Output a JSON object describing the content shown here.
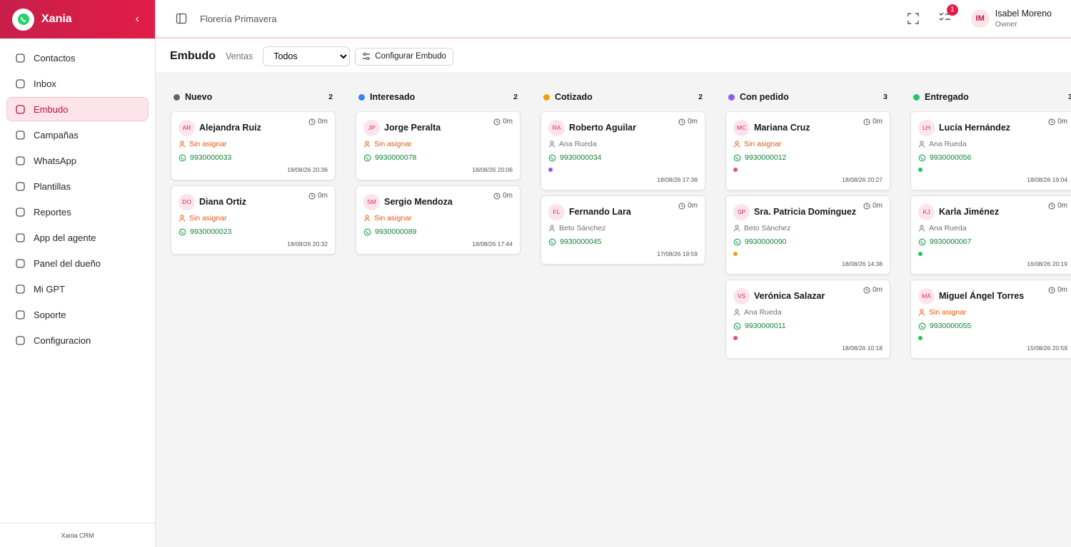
{
  "sidebar": {
    "brand": "Xania",
    "active": 2,
    "nav": [
      "Contactos",
      "Inbox",
      "Embudo",
      "Campañas",
      "WhatsApp",
      "Plantillas",
      "Reportes",
      "App del agente",
      "Panel del dueño",
      "Mi GPT",
      "Soporte",
      "Configuracion"
    ],
    "footer": "Xania CRM"
  },
  "topbar": {
    "business": "Florería Primavera",
    "notifications": 1,
    "user": {
      "initials": "IM",
      "name": "Isabel Moreno",
      "role": "Owner"
    }
  },
  "toolbar": {
    "title": "Embudo",
    "pipeline": "Ventas",
    "filter": "Todos",
    "configure": "Configurar Embudo"
  },
  "columns": [
    {
      "name": "Nuevo",
      "count": 2,
      "color": "#5b6475",
      "cards": [
        {
          "initials": "AR",
          "name": "Alejandra Ruiz",
          "time": "0m",
          "assignee": "Sin asignar",
          "unassigned": true,
          "phone": "9930000033",
          "date": "18/08/26 20:36"
        },
        {
          "initials": "DO",
          "name": "Diana Ortiz",
          "time": "0m",
          "assignee": "Sin asignar",
          "unassigned": true,
          "phone": "9930000023",
          "date": "18/08/26 20:32"
        }
      ]
    },
    {
      "name": "Interesado",
      "count": 2,
      "color": "#3b82f6",
      "cards": [
        {
          "initials": "JP",
          "name": "Jorge Peralta",
          "time": "0m",
          "assignee": "Sin asignar",
          "unassigned": true,
          "phone": "9930000078",
          "date": "18/08/26 20:06"
        },
        {
          "initials": "SM",
          "name": "Sergio Mendoza",
          "time": "0m",
          "assignee": "Sin asignar",
          "unassigned": true,
          "phone": "9930000089",
          "date": "18/08/26 17:44"
        }
      ]
    },
    {
      "name": "Cotizado",
      "count": 2,
      "color": "#f59e0b",
      "cards": [
        {
          "initials": "RA",
          "name": "Roberto Aguilar",
          "time": "0m",
          "assignee": "Ana Rueda",
          "unassigned": false,
          "phone": "9930000034",
          "tag": "#8b5cf6",
          "date": "18/08/26 17:38"
        },
        {
          "initials": "FL",
          "name": "Fernando Lara",
          "time": "0m",
          "assignee": "Beto Sánchez",
          "unassigned": false,
          "phone": "9930000045",
          "date": "17/08/26 19:59"
        }
      ]
    },
    {
      "name": "Con pedido",
      "count": 3,
      "color": "#8b5cf6",
      "cards": [
        {
          "initials": "MC",
          "name": "Mariana Cruz",
          "time": "0m",
          "assignee": "Sin asignar",
          "unassigned": true,
          "phone": "9930000012",
          "tag": "#ec4899",
          "date": "18/08/26 20:27"
        },
        {
          "initials": "SP",
          "name": "Sra. Patricia Domínguez",
          "time": "0m",
          "assignee": "Beto Sánchez",
          "unassigned": false,
          "phone": "9930000090",
          "tag": "#f59e0b",
          "date": "18/08/26 14:38"
        },
        {
          "initials": "VS",
          "name": "Verónica Salazar",
          "time": "0m",
          "assignee": "Ana Rueda",
          "unassigned": false,
          "phone": "9930000011",
          "tag": "#ec4899",
          "date": "18/08/26 10:18"
        }
      ]
    },
    {
      "name": "Entregado",
      "count": 3,
      "color": "#22c55e",
      "cards": [
        {
          "initials": "LH",
          "name": "Lucía Hernández",
          "time": "0m",
          "assignee": "Ana Rueda",
          "unassigned": false,
          "phone": "9930000056",
          "tag": "#22c55e",
          "date": "18/08/26 19:04"
        },
        {
          "initials": "KJ",
          "name": "Karla Jiménez",
          "time": "0m",
          "assignee": "Ana Rueda",
          "unassigned": false,
          "phone": "9930000067",
          "tag": "#22c55e",
          "date": "16/08/26 20:19"
        },
        {
          "initials": "MÁ",
          "name": "Miguel Ángel Torres",
          "time": "0m",
          "assignee": "Sin asignar",
          "unassigned": true,
          "phone": "9930000055",
          "tag": "#22c55e",
          "date": "15/08/26 20:59"
        }
      ]
    }
  ]
}
